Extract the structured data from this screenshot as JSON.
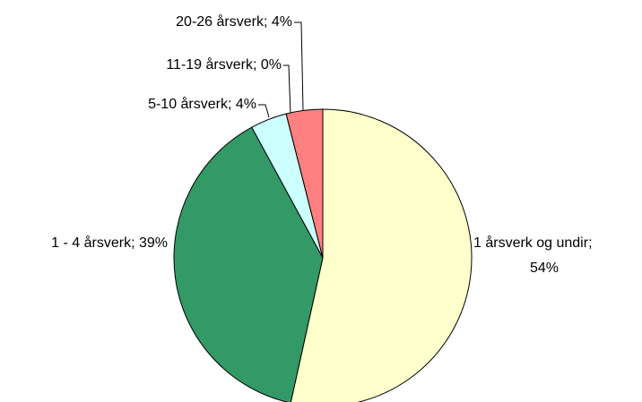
{
  "chart_data": {
    "type": "pie",
    "categories": [
      "1 årsverk og undir",
      "1 - 4 årsverk",
      "5-10 årsverk",
      "11-19 årsverk",
      "20-26 årsverk"
    ],
    "values": [
      54,
      39,
      4,
      0,
      4
    ],
    "value_labels": [
      "54%",
      "39%",
      "4%",
      "0%",
      "4%"
    ],
    "separator": "; ",
    "colors": [
      "#ffffcc",
      "#339966",
      "#ccffff",
      "#ffffff",
      "#ff8080"
    ]
  }
}
